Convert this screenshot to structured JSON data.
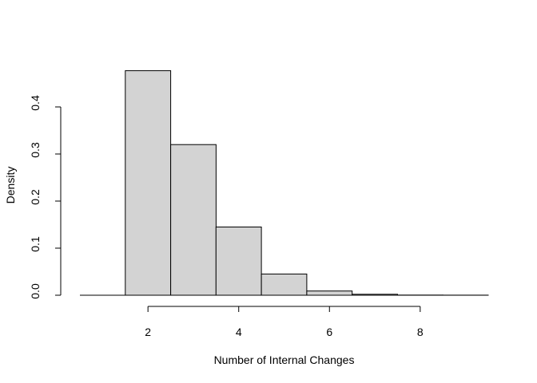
{
  "chart_data": {
    "type": "bar",
    "title": "",
    "xlabel": "Number of Internal Changes",
    "ylabel": "Density",
    "bins": [
      {
        "start": 1.5,
        "end": 2.5,
        "density": 0.477
      },
      {
        "start": 2.5,
        "end": 3.5,
        "density": 0.32
      },
      {
        "start": 3.5,
        "end": 4.5,
        "density": 0.145
      },
      {
        "start": 4.5,
        "end": 5.5,
        "density": 0.045
      },
      {
        "start": 5.5,
        "end": 6.5,
        "density": 0.009
      },
      {
        "start": 6.5,
        "end": 7.5,
        "density": 0.002
      },
      {
        "start": 7.5,
        "end": 8.5,
        "density": 0.0003
      },
      {
        "start": 8.5,
        "end": 9.5,
        "density": 0.0001
      }
    ],
    "xlim": [
      0.5,
      9.5
    ],
    "ylim": [
      0,
      0.4
    ],
    "x_ticks": [
      "2",
      "4",
      "6",
      "8"
    ],
    "y_ticks": [
      "0.0",
      "0.1",
      "0.2",
      "0.3",
      "0.4"
    ],
    "grid": false,
    "colors": {
      "bar_fill": "#d3d3d3",
      "bar_stroke": "#000000"
    }
  }
}
